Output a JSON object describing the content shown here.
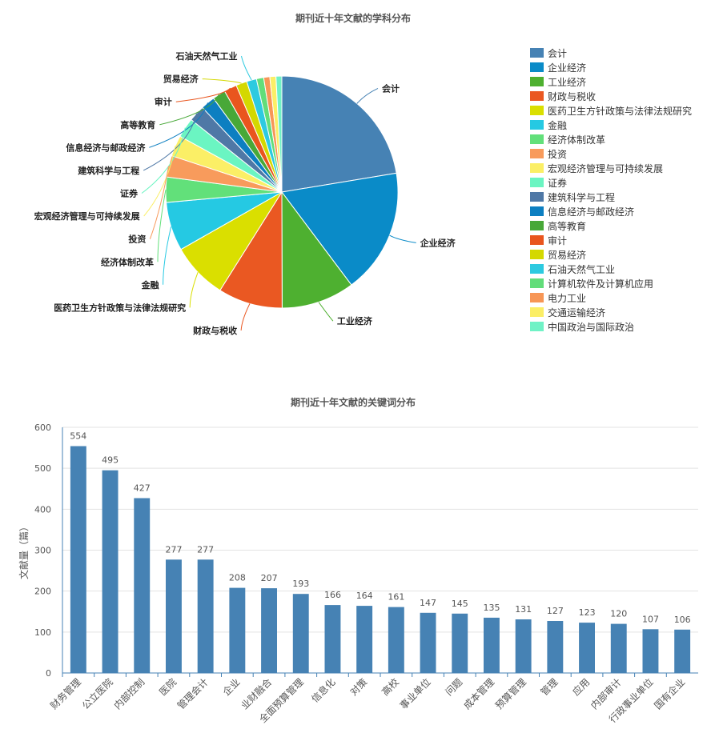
{
  "chart_data": [
    {
      "type": "pie",
      "title": "期刊近十年文献的学科分布",
      "legend_position": "right",
      "slices": [
        {
          "name": "会计",
          "value": 554,
          "color": "#4682b4"
        },
        {
          "name": "企业经济",
          "value": 430,
          "color": "#0a8bc8"
        },
        {
          "name": "工业经济",
          "value": 252,
          "color": "#4eb030"
        },
        {
          "name": "财政与税收",
          "value": 222,
          "color": "#ea5822"
        },
        {
          "name": "医药卫生方针政策与法律法规研究",
          "value": 194,
          "color": "#dadf00"
        },
        {
          "name": "金融",
          "value": 168,
          "color": "#25c9e3"
        },
        {
          "name": "经济体制改革",
          "value": 87,
          "color": "#62e07a"
        },
        {
          "name": "投资",
          "value": 74,
          "color": "#f89b5c"
        },
        {
          "name": "宏观经济管理与可持续发展",
          "value": 72,
          "color": "#fbef66"
        },
        {
          "name": "证券",
          "value": 68,
          "color": "#6bf5c2"
        },
        {
          "name": "建筑科学与工程",
          "value": 56,
          "color": "#4f78a6"
        },
        {
          "name": "信息经济与邮政经济",
          "value": 49,
          "color": "#0d7fc1"
        },
        {
          "name": "高等教育",
          "value": 45,
          "color": "#48a838"
        },
        {
          "name": "审计",
          "value": 44,
          "color": "#e9551e"
        },
        {
          "name": "贸易经济",
          "value": 38,
          "color": "#d4d800"
        },
        {
          "name": "石油天然气工业",
          "value": 34,
          "color": "#2dcae0"
        },
        {
          "name": "计算机软件及计算机应用",
          "value": 25,
          "color": "#62dd7a"
        },
        {
          "name": "电力工业",
          "value": 21,
          "color": "#f79656"
        },
        {
          "name": "交通运输经济",
          "value": 21,
          "color": "#fbee66"
        },
        {
          "name": "中国政治与国际政治",
          "value": 20,
          "color": "#70f2c6"
        }
      ]
    },
    {
      "type": "bar",
      "title": "期刊近十年文献的关键词分布",
      "xlabel": "",
      "ylabel": "文献量（篇）",
      "ylim": [
        0,
        600
      ],
      "yticks": [
        0,
        100,
        200,
        300,
        400,
        500,
        600
      ],
      "grid": true,
      "bar_color": "#4682b4",
      "categories": [
        "财务管理",
        "公立医院",
        "内部控制",
        "医院",
        "管理会计",
        "企业",
        "业财融合",
        "全面预算管理",
        "信息化",
        "对策",
        "高校",
        "事业单位",
        "问题",
        "成本管理",
        "预算管理",
        "管理",
        "应用",
        "内部审计",
        "行政事业单位",
        "国有企业"
      ],
      "values": [
        554,
        495,
        427,
        277,
        277,
        208,
        207,
        193,
        166,
        164,
        161,
        147,
        145,
        135,
        131,
        127,
        123,
        120,
        107,
        106
      ]
    }
  ]
}
